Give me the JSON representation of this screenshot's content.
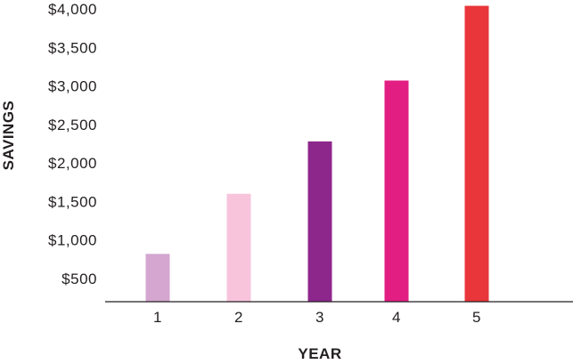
{
  "chart_data": {
    "type": "bar",
    "title": "",
    "xlabel": "YEAR",
    "ylabel": "SAVINGS",
    "categories": [
      "1",
      "2",
      "3",
      "4",
      "5"
    ],
    "values": [
      820,
      1600,
      2280,
      3070,
      4040
    ],
    "colors": [
      "#d4a6d0",
      "#f7c4dc",
      "#8d278c",
      "#e31e83",
      "#e8363a"
    ],
    "y_ticks": [
      500,
      1000,
      1500,
      2000,
      2500,
      3000,
      3500,
      4000
    ],
    "y_tick_labels": [
      "$500",
      "$1,000",
      "$1,500",
      "$2,000",
      "$2,500",
      "$3,000",
      "$3,500",
      "$4,000"
    ],
    "ylim": [
      0,
      4000
    ],
    "grid": false,
    "legend": "none"
  }
}
